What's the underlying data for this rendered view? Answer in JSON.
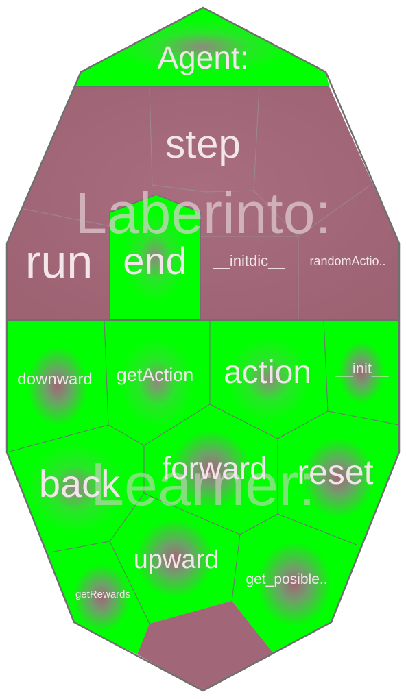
{
  "colors": {
    "green": "#00ff00",
    "mauve": "#a16778",
    "stroke_dark": "#6f6f6f",
    "stroke_light": "#9a8a90",
    "label": "#f2e6ea",
    "watermark": "#e3cfd6"
  },
  "groups": {
    "agent": "Agent:",
    "laberinto": "Laberinto:",
    "learner": "Learner:"
  },
  "cells": {
    "step": "step",
    "run": "run",
    "end": "end",
    "initdic": "__initdic__",
    "randomAction": "randomActio..",
    "downward": "downward",
    "getAction": "getAction",
    "action": "action",
    "init": "__init__",
    "back": "back",
    "forward": "forward",
    "reset": "reset",
    "getRewards": "getRewards",
    "upward": "upward",
    "get_posible": "get_posible.."
  }
}
